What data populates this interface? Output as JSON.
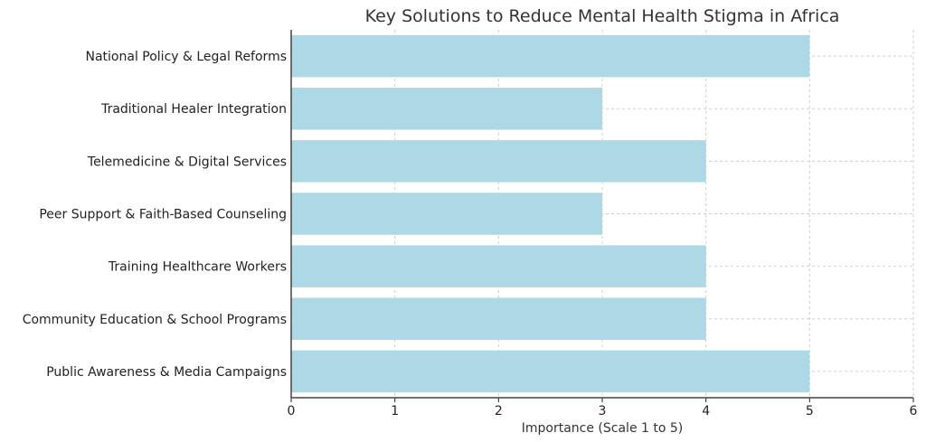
{
  "chart_data": {
    "type": "bar",
    "orientation": "horizontal",
    "title": "Key Solutions to Reduce Mental Health Stigma in Africa",
    "xlabel": "Importance (Scale 1 to 5)",
    "ylabel": "",
    "xlim": [
      0,
      6
    ],
    "xticks": [
      0,
      1,
      2,
      3,
      4,
      5,
      6
    ],
    "grid": true,
    "bar_color": "#add8e6",
    "categories": [
      "National Policy & Legal Reforms",
      "Traditional Healer Integration",
      "Telemedicine & Digital Services",
      "Peer Support & Faith-Based Counseling",
      "Training Healthcare Workers",
      "Community Education & School Programs",
      "Public Awareness & Media Campaigns"
    ],
    "values": [
      5,
      3,
      4,
      3,
      4,
      4,
      5
    ]
  }
}
